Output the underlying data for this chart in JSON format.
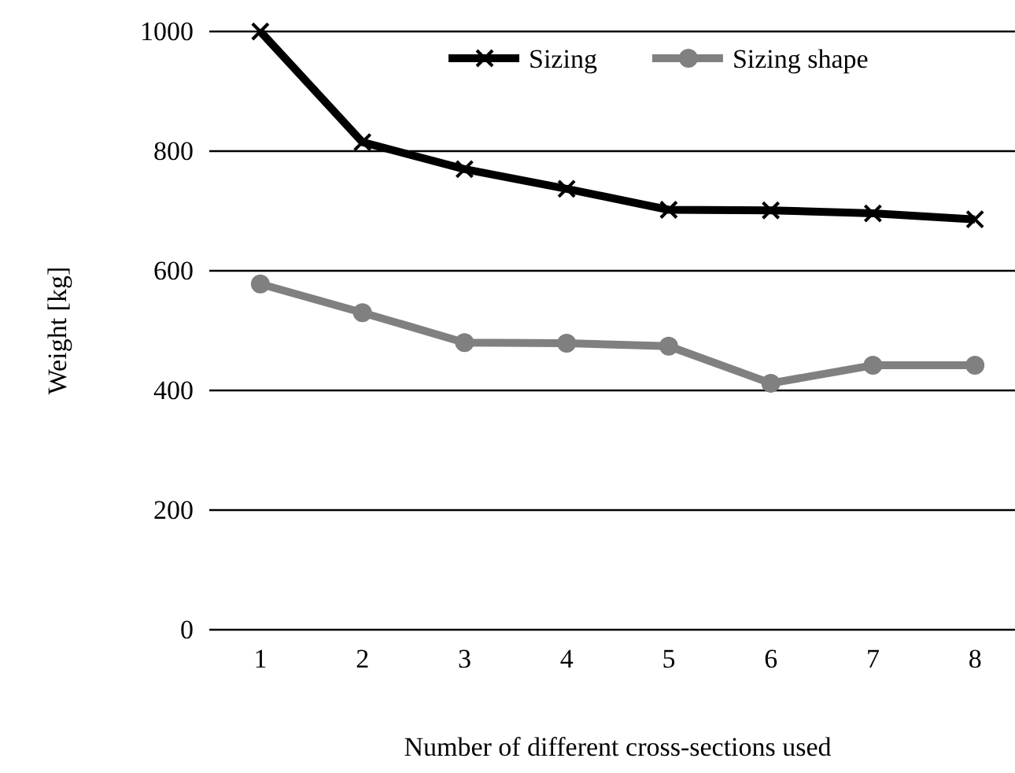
{
  "chart_data": {
    "type": "line",
    "xlabel": "Number of different cross-sections used",
    "ylabel": "Weight [kg]",
    "categories": [
      "1",
      "2",
      "3",
      "4",
      "5",
      "6",
      "7",
      "8"
    ],
    "series": [
      {
        "name": "Sizing",
        "color": "#000000",
        "marker": "cross",
        "values": [
          1000,
          815,
          770,
          737,
          702,
          701,
          696,
          686
        ]
      },
      {
        "name": "Sizing shape",
        "color": "#808080",
        "marker": "circle",
        "values": [
          578,
          530,
          480,
          479,
          474,
          412,
          442,
          442
        ]
      }
    ],
    "ylim": [
      0,
      1000
    ],
    "yticks": [
      0,
      200,
      400,
      600,
      800,
      1000
    ],
    "grid": "y",
    "legend": "top right"
  }
}
